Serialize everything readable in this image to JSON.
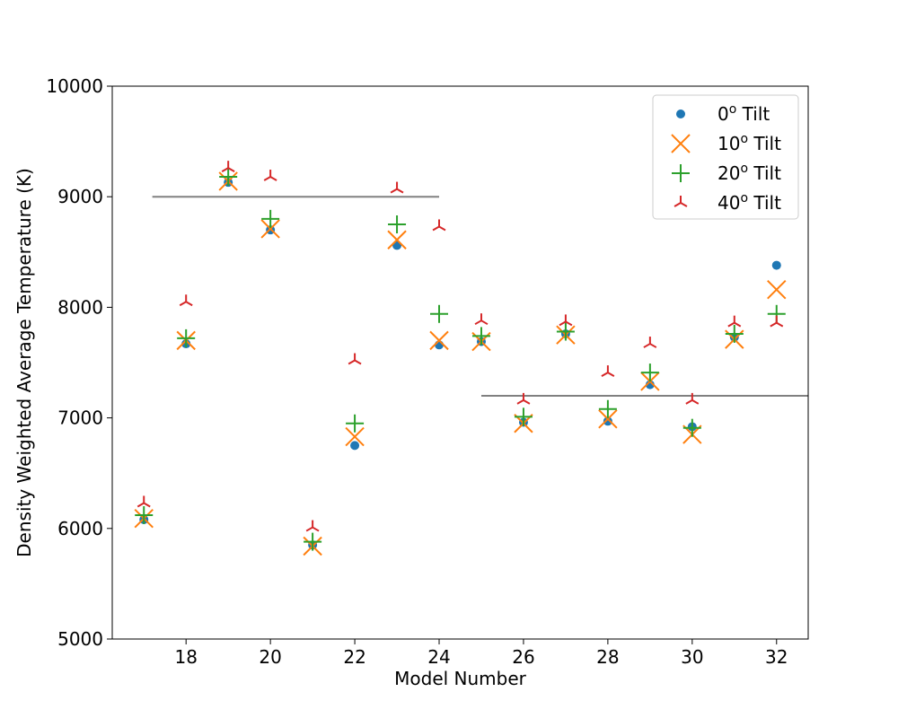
{
  "chart_data": {
    "type": "scatter",
    "title": "",
    "xlabel": "Model Number",
    "ylabel": "Density Weighted Average Temperature (K)",
    "xlim": [
      16.25,
      32.75
    ],
    "ylim": [
      5000,
      10000
    ],
    "xticks": [
      "18",
      "20",
      "22",
      "24",
      "26",
      "28",
      "30",
      "32"
    ],
    "yticks": [
      "5000",
      "6000",
      "7000",
      "8000",
      "9000",
      "10000"
    ],
    "grid": false,
    "legend_position": "top-right",
    "x": [
      17,
      18,
      19,
      20,
      21,
      22,
      23,
      24,
      25,
      26,
      27,
      28,
      29,
      30,
      31,
      32
    ],
    "series": [
      {
        "name": "0",
        "label_suffix": " Tilt",
        "marker": "circle",
        "color": "#1f77b4",
        "values": [
          6080,
          7670,
          9130,
          8700,
          5850,
          6750,
          8560,
          7660,
          7690,
          6960,
          7760,
          6970,
          7300,
          6920,
          7730,
          8380
        ]
      },
      {
        "name": "10",
        "label_suffix": " Tilt",
        "marker": "x",
        "color": "#ff7f0e",
        "values": [
          6090,
          7700,
          9140,
          8710,
          5840,
          6830,
          8610,
          7700,
          7690,
          6950,
          7750,
          6990,
          7330,
          6850,
          7710,
          8160
        ]
      },
      {
        "name": "20",
        "label_suffix": " Tilt",
        "marker": "plus",
        "color": "#2ca02c",
        "values": [
          6120,
          7720,
          9180,
          8800,
          5880,
          6950,
          8750,
          7940,
          7740,
          7010,
          7780,
          7080,
          7410,
          6910,
          7760,
          7940
        ]
      },
      {
        "name": "40",
        "label_suffix": " Tilt",
        "marker": "tri_down",
        "color": "#d62728",
        "values": [
          6230,
          8050,
          9260,
          9180,
          6010,
          7520,
          9070,
          8730,
          7880,
          7160,
          7870,
          7410,
          7670,
          7160,
          7860,
          7860
        ]
      }
    ],
    "reference_lines": [
      {
        "x_start": 17.2,
        "x_end": 24,
        "y": 9000,
        "color": "#808080"
      },
      {
        "x_start": 25,
        "x_end": 32.75,
        "y": 7200,
        "color": "#808080"
      }
    ],
    "legend_superscript": "o"
  }
}
